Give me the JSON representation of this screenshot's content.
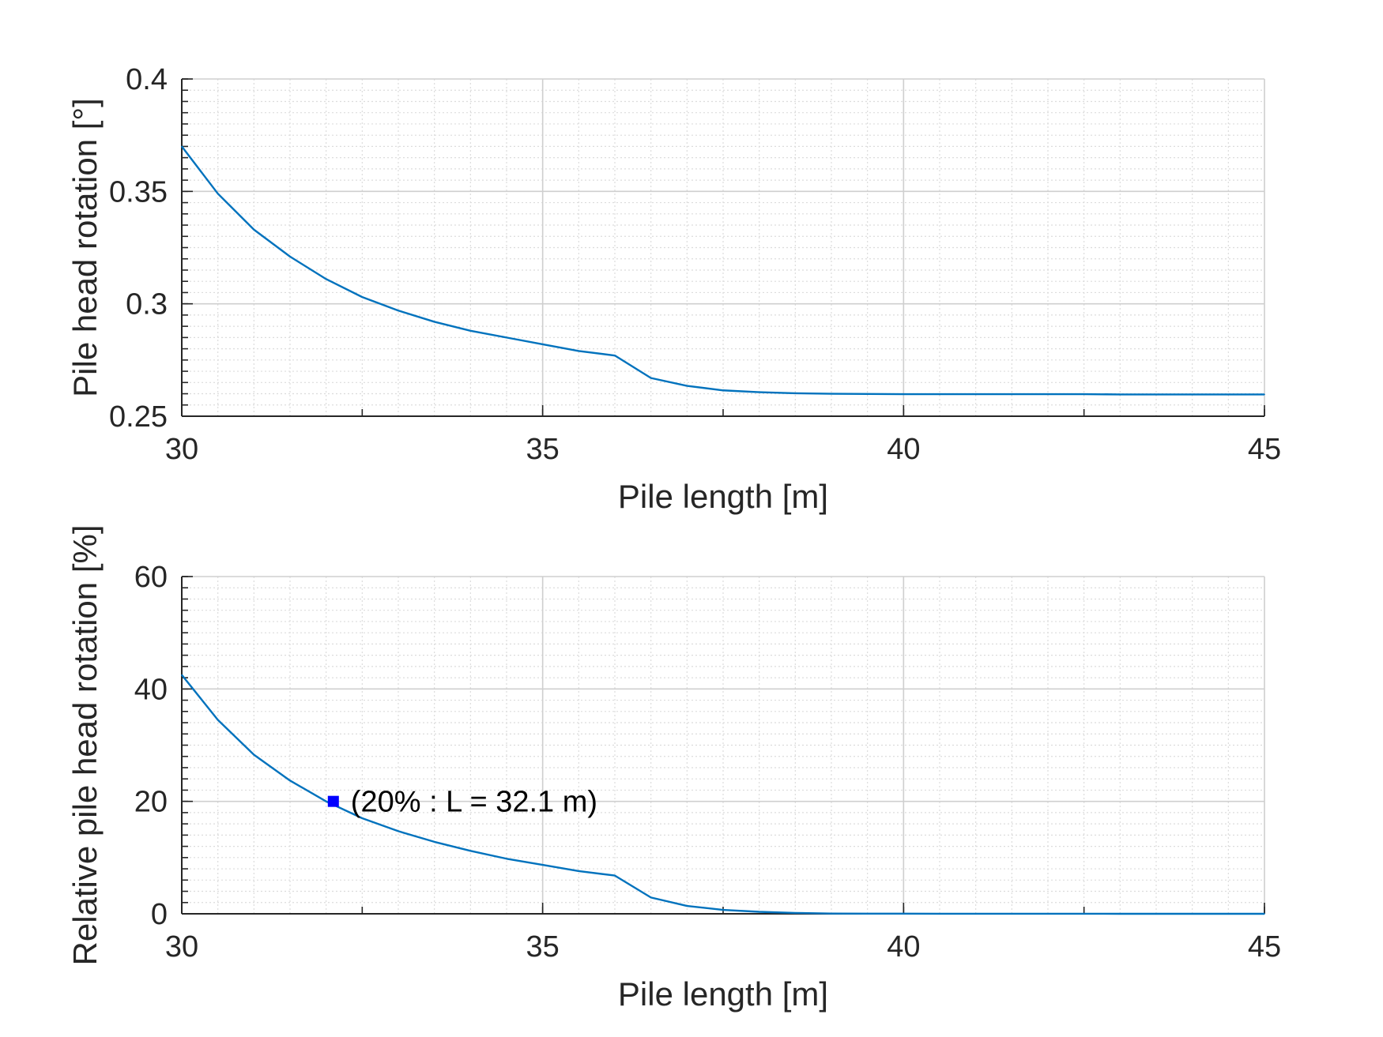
{
  "chart_data": [
    {
      "type": "line",
      "title": "",
      "xlabel": "Pile length [m]",
      "ylabel": "Pile head rotation [°]",
      "xlim": [
        30,
        45
      ],
      "ylim": [
        0.25,
        0.4
      ],
      "x_ticks": [
        30,
        35,
        40,
        45
      ],
      "x_tick_labels": [
        "30",
        "35",
        "40",
        "45"
      ],
      "y_ticks": [
        0.25,
        0.3,
        0.35,
        0.4
      ],
      "y_tick_labels": [
        "0.25",
        "0.3",
        "0.35",
        "0.4"
      ],
      "grid": true,
      "minor_grid": true,
      "x": [
        30,
        30.5,
        31,
        31.5,
        32,
        32.5,
        33,
        33.5,
        34,
        34.5,
        35,
        35.5,
        36,
        36.5,
        37,
        37.5,
        38,
        38.5,
        39,
        39.5,
        40,
        40.5,
        41,
        41.5,
        42,
        42.5,
        43,
        43.5,
        44,
        44.5,
        45
      ],
      "series": [
        {
          "color": "#0072BD",
          "values": [
            0.37,
            0.349,
            0.333,
            0.321,
            0.311,
            0.303,
            0.297,
            0.292,
            0.288,
            0.285,
            0.282,
            0.279,
            0.277,
            0.267,
            0.2635,
            0.2615,
            0.2607,
            0.2602,
            0.26,
            0.2599,
            0.2598,
            0.2598,
            0.2598,
            0.2598,
            0.2598,
            0.2598,
            0.2597,
            0.2597,
            0.2597,
            0.2597,
            0.2597
          ]
        }
      ]
    },
    {
      "type": "line",
      "title": "",
      "xlabel": "Pile length [m]",
      "ylabel": "Relative pile head rotation [%]",
      "xlim": [
        30,
        45
      ],
      "ylim": [
        0,
        60
      ],
      "x_ticks": [
        30,
        35,
        40,
        45
      ],
      "x_tick_labels": [
        "30",
        "35",
        "40",
        "45"
      ],
      "y_ticks": [
        0,
        20,
        40,
        60
      ],
      "y_tick_labels": [
        "0",
        "20",
        "40",
        "60"
      ],
      "grid": true,
      "minor_grid": true,
      "x": [
        30,
        30.5,
        31,
        31.5,
        32,
        32.5,
        33,
        33.5,
        34,
        34.5,
        35,
        35.5,
        36,
        36.5,
        37,
        37.5,
        38,
        38.5,
        39,
        39.5,
        40,
        40.5,
        41,
        41.5,
        42,
        42.5,
        43,
        43.5,
        44,
        44.5,
        45
      ],
      "series": [
        {
          "color": "#0072BD",
          "values": [
            42.5,
            34.5,
            28.3,
            23.7,
            20.0,
            17.0,
            14.7,
            12.8,
            11.2,
            9.8,
            8.7,
            7.6,
            6.8,
            2.9,
            1.4,
            0.7,
            0.35,
            0.15,
            0.05,
            0.03,
            0.02,
            0.01,
            0.01,
            0.01,
            0.01,
            0.01,
            0,
            0,
            0,
            0,
            0
          ]
        }
      ],
      "annotations": [
        {
          "x": 32.1,
          "y": 20,
          "marker": "square",
          "color": "#0000FF",
          "label": "(20% : L = 32.1 m)"
        }
      ]
    }
  ]
}
